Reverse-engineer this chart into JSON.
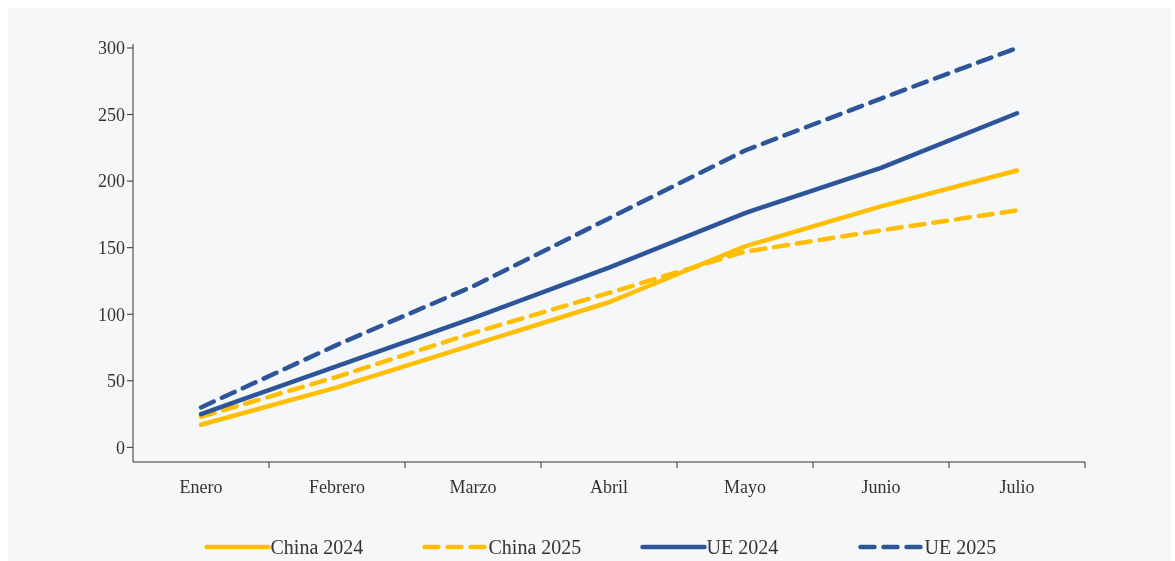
{
  "chart_data": {
    "type": "line",
    "categories": [
      "Enero",
      "Febrero",
      "Marzo",
      "Abril",
      "Mayo",
      "Junio",
      "Julio"
    ],
    "series": [
      {
        "name": "China 2024",
        "color": "#ffbf00",
        "line_style": "solid",
        "values": [
          17,
          45,
          77,
          109,
          151,
          181,
          208
        ]
      },
      {
        "name": "China 2025",
        "color": "#ffbf00",
        "line_style": "dashed",
        "values": [
          23,
          53,
          86,
          116,
          147,
          163,
          178
        ]
      },
      {
        "name": "UE 2024",
        "color": "#2e5597",
        "line_style": "solid",
        "values": [
          25,
          61,
          97,
          135,
          176,
          210,
          251
        ]
      },
      {
        "name": "UE 2025",
        "color": "#2e5597",
        "line_style": "dashed",
        "values": [
          30,
          77,
          121,
          172,
          223,
          262,
          300
        ]
      }
    ],
    "ylim": [
      -11,
      303
    ],
    "yticks": [
      0,
      50,
      100,
      150,
      200,
      250,
      300
    ],
    "grid": false,
    "legend": "bottom",
    "marker": "none"
  }
}
